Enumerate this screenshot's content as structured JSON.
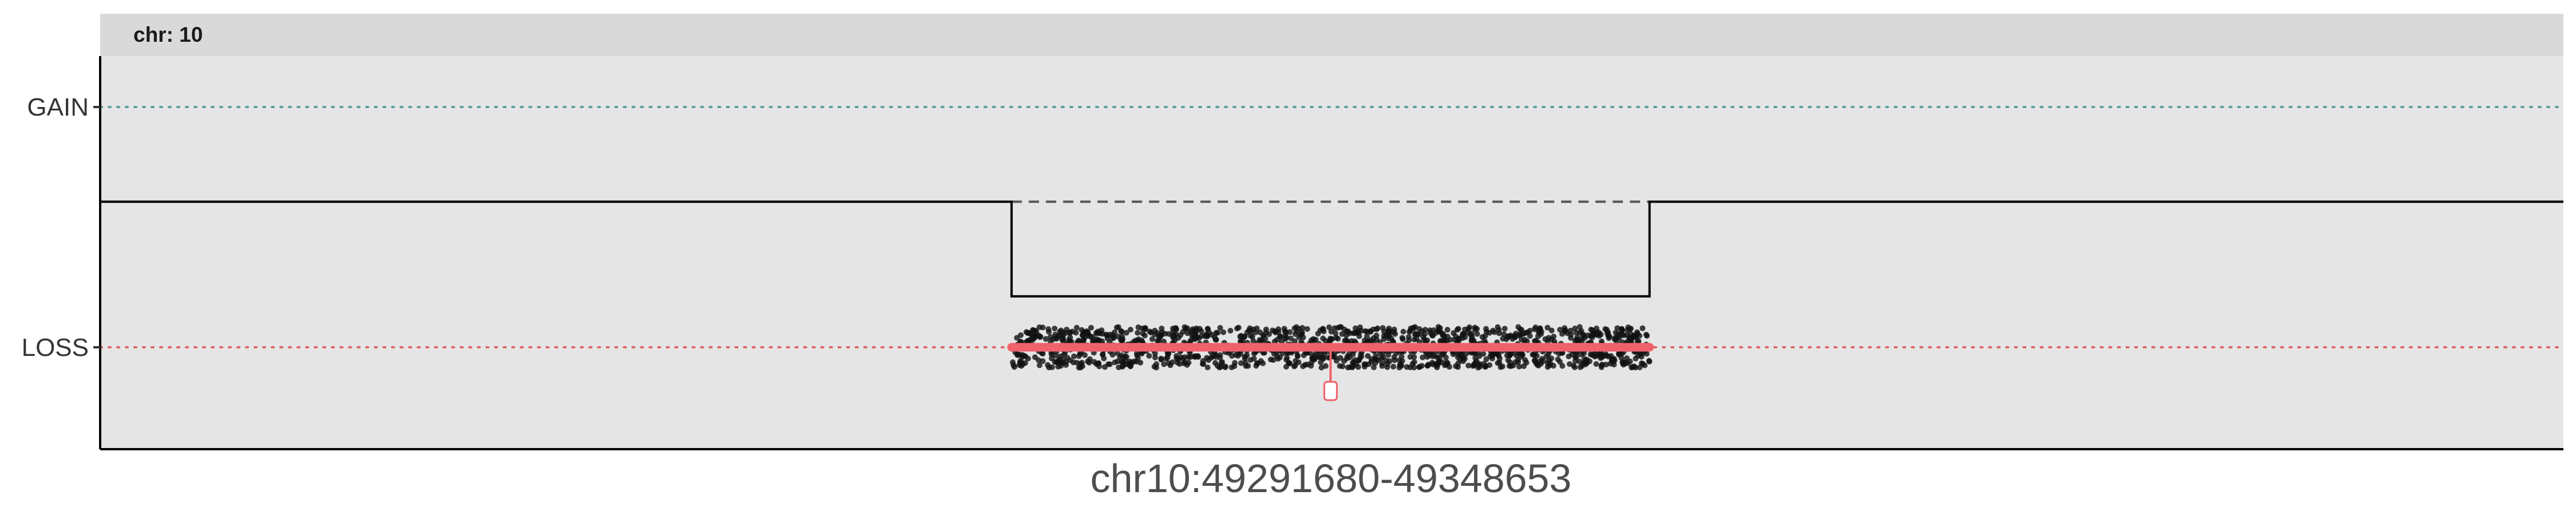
{
  "chart_data": {
    "type": "scatter",
    "facet_label": "chr: 10",
    "xlabel": "chr10:49291680-49348653",
    "y_levels": [
      "GAIN",
      "LOSS"
    ],
    "reference_lines": [
      {
        "level": "GAIN",
        "color": "#5f9ea0",
        "style": "dotted"
      },
      {
        "level": "LOSS",
        "color": "#e06666",
        "style": "dotted"
      }
    ],
    "xlim": [
      0,
      1
    ],
    "ylim": [
      -1.7,
      1.0
    ],
    "segment_profile": {
      "baseline": 0,
      "region_x": [
        0.37,
        0.629
      ],
      "region_level": -0.65,
      "dashed_baseline_color": "#555555"
    },
    "loss_call": {
      "x": [
        0.37,
        0.629
      ],
      "y": -1.0,
      "color": "#f0626a",
      "marker_x": 0.4995,
      "marker_y": -1.3
    },
    "points": {
      "x_range": [
        0.37,
        0.629
      ],
      "y_center": -1.0,
      "y_spread": 0.14,
      "count": 1400,
      "color": "#111111"
    },
    "grid": false,
    "legend": "none",
    "colors": {
      "panel_bg": "#e5e5e5",
      "strip_bg": "#d9d9d9",
      "axis": "#000000"
    }
  }
}
